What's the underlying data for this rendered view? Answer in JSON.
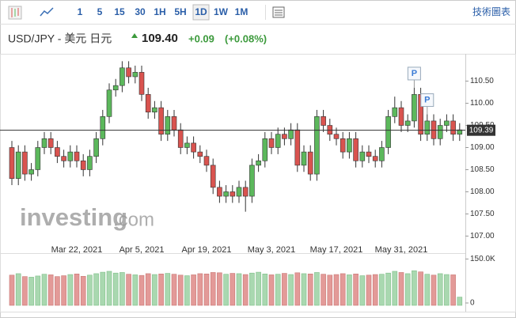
{
  "toolbar": {
    "timeframes": [
      "1",
      "5",
      "15",
      "30",
      "1H",
      "5H",
      "1D",
      "1W",
      "1M"
    ],
    "active": "1D",
    "link": "技術圖表"
  },
  "chart_data": {
    "type": "candlestick",
    "title": "USD/JPY - 美元 日元",
    "price": "109.40",
    "change": "+0.09",
    "change_pct": "(+0.08%)",
    "watermark": [
      "investing",
      ".com"
    ],
    "categories": [
      null,
      null,
      null,
      null,
      null,
      null,
      null,
      null,
      null,
      null,
      "Mar 22, 2021",
      null,
      null,
      null,
      null,
      null,
      null,
      null,
      null,
      null,
      "Apr 5, 2021",
      null,
      null,
      null,
      null,
      null,
      null,
      null,
      null,
      null,
      "Apr 19, 2021",
      null,
      null,
      null,
      null,
      null,
      null,
      null,
      null,
      null,
      "May 3, 2021",
      null,
      null,
      null,
      null,
      null,
      null,
      null,
      null,
      null,
      "May 17, 2021",
      null,
      null,
      null,
      null,
      null,
      null,
      null,
      null,
      null,
      "May 31, 2021",
      null,
      null,
      null,
      null,
      null,
      null,
      null,
      null,
      null
    ],
    "open": [
      109.0,
      108.3,
      108.9,
      108.4,
      108.5,
      109.0,
      109.2,
      109.0,
      108.8,
      108.7,
      108.9,
      108.7,
      108.5,
      108.8,
      109.2,
      109.7,
      110.3,
      110.4,
      110.8,
      110.6,
      110.7,
      110.2,
      109.8,
      109.9,
      109.3,
      109.7,
      109.4,
      109.0,
      109.1,
      108.9,
      108.8,
      108.6,
      108.1,
      107.9,
      108.0,
      107.9,
      108.1,
      107.9,
      108.6,
      108.7,
      109.2,
      109.0,
      109.3,
      109.2,
      109.4,
      108.6,
      108.9,
      108.4,
      109.7,
      109.5,
      109.3,
      109.2,
      108.9,
      109.2,
      108.7,
      108.9,
      108.8,
      108.7,
      109.0,
      109.7,
      109.9,
      109.5,
      109.6,
      110.2,
      109.3,
      109.6,
      109.2,
      109.5,
      109.6,
      109.3
    ],
    "high": [
      109.15,
      109.05,
      109.05,
      108.65,
      109.15,
      109.35,
      109.35,
      109.15,
      108.95,
      109.05,
      109.05,
      108.85,
      108.95,
      109.35,
      109.85,
      110.45,
      110.55,
      110.95,
      110.95,
      110.85,
      110.85,
      110.35,
      110.05,
      110.05,
      109.85,
      109.85,
      109.55,
      109.25,
      109.25,
      109.05,
      108.95,
      108.75,
      108.25,
      108.15,
      108.15,
      108.25,
      108.25,
      108.75,
      108.85,
      109.35,
      109.35,
      109.45,
      109.45,
      109.55,
      109.55,
      109.05,
      109.05,
      109.85,
      109.85,
      109.65,
      109.45,
      109.35,
      109.35,
      109.35,
      109.05,
      109.05,
      108.95,
      109.15,
      109.85,
      110.15,
      110.05,
      109.75,
      110.35,
      110.35,
      109.75,
      109.75,
      109.65,
      109.75,
      109.75,
      109.55
    ],
    "low": [
      108.15,
      108.15,
      108.25,
      108.25,
      108.35,
      108.85,
      108.85,
      108.65,
      108.55,
      108.55,
      108.55,
      108.35,
      108.35,
      108.65,
      109.05,
      109.55,
      110.15,
      110.25,
      110.45,
      110.45,
      110.05,
      109.65,
      109.65,
      109.15,
      109.15,
      109.25,
      108.85,
      108.85,
      108.75,
      108.65,
      108.45,
      107.95,
      107.75,
      107.75,
      107.75,
      107.75,
      107.55,
      107.75,
      108.45,
      108.55,
      108.85,
      108.85,
      109.05,
      109.05,
      108.45,
      108.45,
      108.25,
      108.25,
      109.35,
      109.15,
      109.05,
      108.75,
      108.75,
      108.55,
      108.55,
      108.65,
      108.55,
      108.55,
      108.85,
      109.55,
      109.35,
      109.35,
      109.45,
      109.15,
      109.15,
      109.05,
      109.05,
      109.35,
      109.15,
      109.15
    ],
    "close": [
      108.3,
      108.9,
      108.4,
      108.5,
      109.0,
      109.2,
      109.0,
      108.8,
      108.7,
      108.9,
      108.7,
      108.5,
      108.8,
      109.2,
      109.7,
      110.3,
      110.4,
      110.8,
      110.6,
      110.7,
      110.2,
      109.8,
      109.9,
      109.3,
      109.7,
      109.4,
      109.0,
      109.1,
      108.9,
      108.8,
      108.6,
      108.1,
      107.9,
      108.0,
      107.9,
      108.1,
      107.9,
      108.6,
      108.7,
      109.2,
      109.0,
      109.3,
      109.2,
      109.4,
      108.6,
      108.9,
      108.4,
      109.7,
      109.5,
      109.3,
      109.2,
      108.9,
      109.2,
      108.7,
      108.9,
      108.8,
      108.7,
      109.0,
      109.7,
      109.9,
      109.5,
      109.6,
      110.2,
      109.3,
      109.6,
      109.2,
      109.5,
      109.6,
      109.3,
      109.4
    ],
    "volume": [
      95000,
      100000,
      90000,
      88000,
      92000,
      98000,
      96000,
      90000,
      93000,
      97000,
      99000,
      91000,
      95000,
      100000,
      105000,
      108000,
      102000,
      104000,
      98000,
      96000,
      94000,
      100000,
      97000,
      99000,
      101000,
      98000,
      95000,
      93000,
      96000,
      100000,
      99000,
      104000,
      103000,
      98000,
      101000,
      100000,
      97000,
      102000,
      105000,
      99000,
      96000,
      98000,
      101000,
      97000,
      103000,
      100000,
      99000,
      104000,
      98000,
      95000,
      97000,
      100000,
      96000,
      99000,
      93000,
      95000,
      97000,
      98000,
      102000,
      108000,
      104000,
      100000,
      110000,
      106000,
      98000,
      95000,
      100000,
      97000,
      96000,
      20000
    ],
    "up_color": "#5cb85c",
    "down_color": "#d9534f",
    "vol_up_color": "#a9d8b0",
    "vol_down_color": "#e39a98",
    "ylim": [
      106.9,
      111.1
    ],
    "yticks": [
      {
        "value": 107.0,
        "label": "107.00"
      },
      {
        "value": 107.5,
        "label": "107.50"
      },
      {
        "value": 108.0,
        "label": "108.00"
      },
      {
        "value": 108.5,
        "label": "108.50"
      },
      {
        "value": 109.0,
        "label": "109.00"
      },
      {
        "value": 109.5,
        "label": "109.50"
      },
      {
        "value": 110.0,
        "label": "110.00"
      },
      {
        "value": 110.5,
        "label": "110.50"
      }
    ],
    "y2lim": [
      0,
      170000
    ],
    "y2ticks": [
      0,
      {
        "value": 150000,
        "label": "150.0K"
      }
    ],
    "last_price": 109.39,
    "annotations": [
      {
        "text": "P",
        "index": 62
      },
      {
        "text": "P",
        "index": 64
      }
    ]
  }
}
